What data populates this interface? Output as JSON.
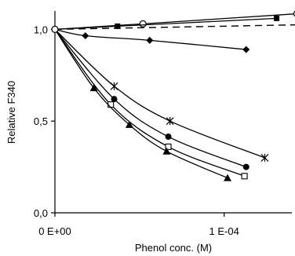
{
  "chart_data": {
    "type": "line",
    "title": "",
    "xlabel": "Phenol conc. (M)",
    "ylabel": "Relative F340",
    "xlim": [
      0,
      0.00014
    ],
    "ylim": [
      0,
      1.1
    ],
    "x_ticks": [
      {
        "value": 0,
        "label": "0 E+00"
      },
      {
        "value": 0.0001,
        "label": "1 E-04"
      }
    ],
    "y_ticks": [
      {
        "value": 0,
        "label": "0,0"
      },
      {
        "value": 0.5,
        "label": "0,5"
      },
      {
        "value": 1.0,
        "label": "1,0"
      }
    ],
    "grid": false,
    "legend": "none",
    "series": [
      {
        "marker": "open-circle",
        "line": "solid",
        "x": [
          0,
          5.2e-05,
          0.000143
        ],
        "y": [
          1.0,
          1.03,
          1.085
        ]
      },
      {
        "marker": "filled-square",
        "line": "solid",
        "x": [
          0,
          3.7e-05,
          0.000131
        ],
        "y": [
          1.0,
          1.017,
          1.06
        ]
      },
      {
        "marker": "none",
        "line": "dashed",
        "x": [
          0,
          0.000145
        ],
        "y": [
          1.0,
          1.025
        ]
      },
      {
        "marker": "filled-diamond",
        "line": "solid",
        "x": [
          0,
          1.8e-05,
          5.6e-05,
          0.000113
        ],
        "y": [
          1.0,
          0.965,
          0.94,
          0.89
        ]
      },
      {
        "marker": "asterisk",
        "line": "solid",
        "x": [
          0,
          3.5e-05,
          6.8e-05,
          0.000124
        ],
        "y": [
          1.0,
          0.69,
          0.5,
          0.3
        ]
      },
      {
        "marker": "filled-circle",
        "line": "solid",
        "x": [
          0,
          3.5e-05,
          6.7e-05,
          0.000113
        ],
        "y": [
          1.0,
          0.62,
          0.415,
          0.25
        ]
      },
      {
        "marker": "open-square",
        "line": "solid",
        "x": [
          0,
          3.3e-05,
          6.7e-05,
          0.000112
        ],
        "y": [
          1.0,
          0.59,
          0.36,
          0.2
        ]
      },
      {
        "marker": "filled-triangle",
        "line": "solid",
        "x": [
          0,
          2.3e-05,
          4.4e-05,
          6.6e-05,
          0.000102
        ],
        "y": [
          1.0,
          0.68,
          0.48,
          0.335,
          0.19
        ]
      }
    ]
  }
}
